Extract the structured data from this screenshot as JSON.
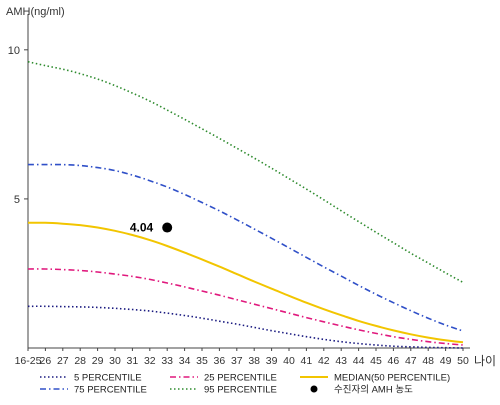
{
  "chart_data": {
    "type": "line",
    "ylabel": "AMH(ng/ml)",
    "xlabel": "나이",
    "ylim": [
      0,
      11
    ],
    "yticks": [
      5,
      10
    ],
    "x": [
      "16-25",
      "26",
      "27",
      "28",
      "29",
      "30",
      "31",
      "32",
      "33",
      "34",
      "35",
      "36",
      "37",
      "38",
      "39",
      "40",
      "41",
      "42",
      "43",
      "44",
      "45",
      "46",
      "47",
      "48",
      "49",
      "50"
    ],
    "series": [
      {
        "name": "5 PERCENTILE",
        "color": "#1a1a80",
        "dash": "dotted",
        "values": [
          1.4,
          1.4,
          1.39,
          1.38,
          1.36,
          1.33,
          1.29,
          1.24,
          1.17,
          1.09,
          1.0,
          0.9,
          0.8,
          0.69,
          0.58,
          0.48,
          0.38,
          0.29,
          0.21,
          0.15,
          0.1,
          0.06,
          0.04,
          0.02,
          0.01,
          0.0
        ]
      },
      {
        "name": "25 PERCENTILE",
        "color": "#e0197d",
        "dash": "dashdot",
        "values": [
          2.65,
          2.65,
          2.63,
          2.6,
          2.55,
          2.48,
          2.4,
          2.3,
          2.18,
          2.05,
          1.91,
          1.77,
          1.62,
          1.47,
          1.32,
          1.17,
          1.02,
          0.88,
          0.74,
          0.61,
          0.49,
          0.38,
          0.29,
          0.21,
          0.15,
          0.1
        ]
      },
      {
        "name": "MEDIAN(50 PERCENTILE)",
        "color": "#f2c500",
        "dash": "solid",
        "values": [
          4.2,
          4.2,
          4.17,
          4.12,
          4.04,
          3.93,
          3.79,
          3.62,
          3.42,
          3.2,
          2.97,
          2.73,
          2.48,
          2.23,
          1.99,
          1.75,
          1.52,
          1.3,
          1.1,
          0.91,
          0.74,
          0.59,
          0.46,
          0.35,
          0.26,
          0.19
        ]
      },
      {
        "name": "75 PERCENTILE",
        "color": "#3050c8",
        "dash": "dashdot",
        "values": [
          6.15,
          6.15,
          6.15,
          6.12,
          6.05,
          5.95,
          5.8,
          5.61,
          5.4,
          5.15,
          4.88,
          4.6,
          4.3,
          3.99,
          3.68,
          3.36,
          3.04,
          2.72,
          2.41,
          2.1,
          1.8,
          1.52,
          1.25,
          1.0,
          0.77,
          0.57
        ]
      },
      {
        "name": "95 PERCENTILE",
        "color": "#2e8b2e",
        "dash": "dotted",
        "values": [
          9.6,
          9.47,
          9.35,
          9.2,
          9.02,
          8.8,
          8.55,
          8.28,
          7.98,
          7.67,
          7.35,
          7.03,
          6.7,
          6.37,
          6.03,
          5.68,
          5.33,
          4.97,
          4.6,
          4.24,
          3.88,
          3.53,
          3.18,
          2.85,
          2.52,
          2.2
        ]
      }
    ],
    "marker": {
      "name": "수진자의 AMH 농도",
      "x": "33",
      "y": 4.04,
      "label": "4.04",
      "color": "#000000"
    },
    "legend_position": "bottom",
    "legend": [
      "5 PERCENTILE",
      "25 PERCENTILE",
      "MEDIAN(50 PERCENTILE)",
      "75 PERCENTILE",
      "95 PERCENTILE",
      "수진자의 AMH 농도"
    ]
  }
}
